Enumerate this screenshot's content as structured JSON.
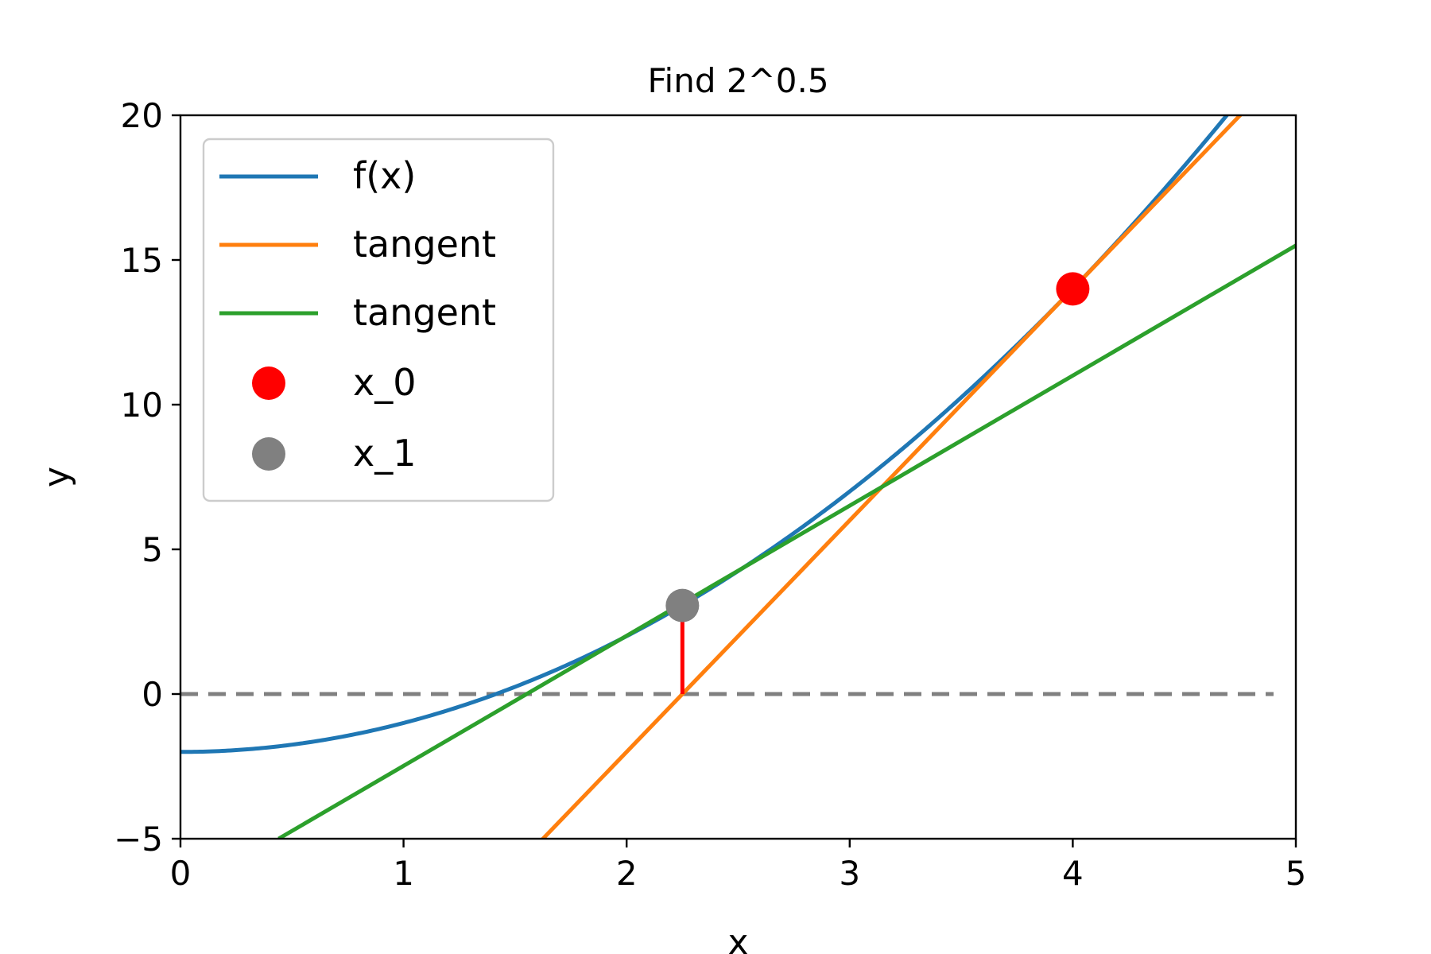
{
  "chart_data": {
    "type": "line",
    "title": "Find 2^0.5",
    "xlabel": "x",
    "ylabel": "y",
    "xlim": [
      0,
      5
    ],
    "ylim": [
      -5,
      20
    ],
    "xticks": [
      0,
      1,
      2,
      3,
      4,
      5
    ],
    "yticks": [
      -5,
      0,
      5,
      10,
      15,
      20
    ],
    "grid": false,
    "legend_position": "upper-left",
    "series": [
      {
        "name": "f(x)",
        "kind": "line",
        "color": "#1f77b4",
        "function": "x^2 - 2"
      },
      {
        "name": "tangent",
        "kind": "line",
        "color": "#ff7f0e",
        "x": [
          1.6,
          5.0
        ],
        "y": [
          -5.2,
          22.0
        ]
      },
      {
        "name": "tangent",
        "kind": "line",
        "color": "#2ca02c",
        "x": [
          0.44,
          5.0
        ],
        "y": [
          -5.0,
          15.5
        ]
      },
      {
        "name": "x_0",
        "kind": "point",
        "color": "#ff0000",
        "x": 4.0,
        "y": 14.0
      },
      {
        "name": "x_1",
        "kind": "point",
        "color": "#808080",
        "x": 2.25,
        "y": 3.06
      }
    ],
    "annotations": [
      {
        "kind": "hline",
        "y": 0,
        "color": "#808080",
        "style": "dashed",
        "x": [
          0,
          4.9
        ]
      },
      {
        "kind": "vsegment",
        "x": 2.25,
        "y": [
          0,
          3.06
        ],
        "color": "#ff0000"
      }
    ]
  }
}
